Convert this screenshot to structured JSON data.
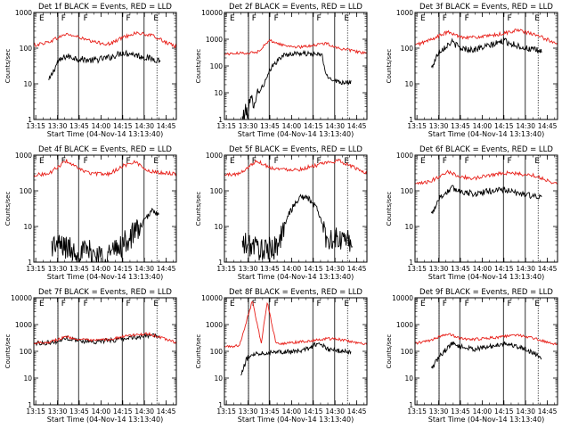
{
  "figure": {
    "time_ticks": [
      "13:15",
      "13:30",
      "13:45",
      "14:00",
      "14:15",
      "14:30",
      "14:45"
    ],
    "y_ticks_1e3": [
      "1",
      "10",
      "100",
      "1000"
    ],
    "y_ticks_1e4": [
      "1",
      "10",
      "100",
      "1000",
      "10000"
    ],
    "ylabel": "Counts/sec",
    "xlabel": "Start Time (04-Nov-14 13:13:40)",
    "markers": [
      "E",
      "F",
      "F",
      "F",
      "E"
    ],
    "colors": {
      "events": "#000000",
      "lld": "#e8201a",
      "axes": "#000000"
    }
  },
  "chart_data": [
    {
      "type": "line",
      "title": "Det 1f BLACK = Events, RED = LLD",
      "xlabel": "Start Time (04-Nov-14 13:13:40)",
      "ylabel": "Counts/sec",
      "x_range": [
        "13:13:40",
        "14:52:00"
      ],
      "y_scale": "log",
      "ylim": [
        1,
        1000
      ],
      "series": [
        {
          "name": "Events",
          "color": "black",
          "start": "13:24",
          "end": "14:41",
          "points": [
            [
              13.4,
              12
            ],
            [
              13.5,
              40
            ],
            [
              13.6,
              60
            ],
            [
              13.75,
              50
            ],
            [
              13.9,
              45
            ],
            [
              14.1,
              55
            ],
            [
              14.25,
              75
            ],
            [
              14.35,
              70
            ],
            [
              14.5,
              55
            ],
            [
              14.69,
              45
            ]
          ]
        },
        {
          "name": "LLD",
          "color": "red",
          "start": "13:13:40",
          "end": "14:52",
          "points": [
            [
              13.23,
              120
            ],
            [
              13.4,
              150
            ],
            [
              13.6,
              250
            ],
            [
              13.75,
              200
            ],
            [
              13.9,
              150
            ],
            [
              14.1,
              130
            ],
            [
              14.25,
              200
            ],
            [
              14.4,
              270
            ],
            [
              14.6,
              220
            ],
            [
              14.85,
              110
            ]
          ]
        }
      ]
    },
    {
      "type": "line",
      "title": "Det 2f BLACK = Events, RED = LLD",
      "xlabel": "Start Time (04-Nov-14 13:13:40)",
      "ylabel": "Counts/sec",
      "x_range": [
        "13:13:40",
        "14:52:00"
      ],
      "y_scale": "log",
      "ylim": [
        1,
        10000
      ],
      "series": [
        {
          "name": "Events",
          "color": "black",
          "start": "13:26",
          "end": "14:41",
          "points": [
            [
              13.43,
              1
            ],
            [
              13.55,
              5
            ],
            [
              13.68,
              20
            ],
            [
              13.78,
              100
            ],
            [
              13.9,
              250
            ],
            [
              14.05,
              300
            ],
            [
              14.2,
              280
            ],
            [
              14.35,
              260
            ],
            [
              14.4,
              40
            ],
            [
              14.55,
              25
            ],
            [
              14.68,
              25
            ]
          ]
        },
        {
          "name": "LLD",
          "color": "red",
          "start": "13:13:40",
          "end": "14:52",
          "points": [
            [
              13.23,
              280
            ],
            [
              13.4,
              300
            ],
            [
              13.6,
              320
            ],
            [
              13.75,
              900
            ],
            [
              13.9,
              600
            ],
            [
              14.1,
              500
            ],
            [
              14.25,
              600
            ],
            [
              14.4,
              700
            ],
            [
              14.55,
              450
            ],
            [
              14.85,
              300
            ]
          ]
        }
      ]
    },
    {
      "type": "line",
      "title": "Det 3f BLACK = Events, RED = LLD",
      "xlabel": "Start Time (04-Nov-14 13:13:40)",
      "ylabel": "Counts/sec",
      "x_range": [
        "13:13:40",
        "14:52:00"
      ],
      "y_scale": "log",
      "ylim": [
        1,
        1000
      ],
      "series": [
        {
          "name": "Events",
          "color": "black",
          "start": "13:25",
          "end": "14:41",
          "points": [
            [
              13.41,
              25
            ],
            [
              13.5,
              80
            ],
            [
              13.65,
              150
            ],
            [
              13.75,
              100
            ],
            [
              13.9,
              90
            ],
            [
              14.1,
              120
            ],
            [
              14.25,
              160
            ],
            [
              14.35,
              130
            ],
            [
              14.5,
              100
            ],
            [
              14.69,
              80
            ]
          ]
        },
        {
          "name": "LLD",
          "color": "red",
          "start": "13:13:40",
          "end": "14:52",
          "points": [
            [
              13.23,
              120
            ],
            [
              13.4,
              170
            ],
            [
              13.6,
              280
            ],
            [
              13.75,
              210
            ],
            [
              13.9,
              200
            ],
            [
              14.1,
              220
            ],
            [
              14.25,
              260
            ],
            [
              14.4,
              320
            ],
            [
              14.6,
              240
            ],
            [
              14.85,
              140
            ]
          ]
        }
      ]
    },
    {
      "type": "line",
      "title": "Det 4f BLACK = Events, RED = LLD",
      "xlabel": "Start Time (04-Nov-14 13:13:40)",
      "ylabel": "Counts/sec",
      "x_range": [
        "13:13:40",
        "14:52:00"
      ],
      "y_scale": "log",
      "ylim": [
        1,
        1000
      ],
      "series": [
        {
          "name": "Events",
          "color": "black",
          "start": "13:26",
          "end": "14:40",
          "points": [
            [
              13.43,
              3
            ],
            [
              13.55,
              3
            ],
            [
              13.7,
              2
            ],
            [
              13.85,
              2
            ],
            [
              14.0,
              1.5
            ],
            [
              14.15,
              2
            ],
            [
              14.3,
              4
            ],
            [
              14.45,
              10
            ],
            [
              14.6,
              30
            ],
            [
              14.67,
              20
            ]
          ]
        },
        {
          "name": "LLD",
          "color": "red",
          "start": "13:13:40",
          "end": "14:52",
          "points": [
            [
              13.23,
              280
            ],
            [
              13.4,
              300
            ],
            [
              13.6,
              700
            ],
            [
              13.75,
              400
            ],
            [
              13.9,
              300
            ],
            [
              14.1,
              300
            ],
            [
              14.25,
              500
            ],
            [
              14.4,
              650
            ],
            [
              14.55,
              350
            ],
            [
              14.85,
              300
            ]
          ]
        }
      ]
    },
    {
      "type": "line",
      "title": "Det 5f BLACK = Events, RED = LLD",
      "xlabel": "Start Time (04-Nov-14 13:13:40)",
      "ylabel": "Counts/sec",
      "x_range": [
        "13:13:40",
        "14:52:00"
      ],
      "y_scale": "log",
      "ylim": [
        1,
        1000
      ],
      "series": [
        {
          "name": "Events",
          "color": "black",
          "start": "13:26",
          "end": "14:42",
          "points": [
            [
              13.43,
              3
            ],
            [
              13.55,
              3
            ],
            [
              13.7,
              2
            ],
            [
              13.85,
              3
            ],
            [
              13.95,
              20
            ],
            [
              14.1,
              70
            ],
            [
              14.2,
              60
            ],
            [
              14.3,
              30
            ],
            [
              14.4,
              5
            ],
            [
              14.55,
              4
            ],
            [
              14.7,
              4
            ]
          ]
        },
        {
          "name": "LLD",
          "color": "red",
          "start": "13:13:40",
          "end": "14:52",
          "points": [
            [
              13.23,
              280
            ],
            [
              13.4,
              300
            ],
            [
              13.6,
              700
            ],
            [
              13.75,
              450
            ],
            [
              13.9,
              400
            ],
            [
              14.1,
              400
            ],
            [
              14.25,
              500
            ],
            [
              14.4,
              600
            ],
            [
              14.55,
              700
            ],
            [
              14.85,
              320
            ]
          ]
        }
      ]
    },
    {
      "type": "line",
      "title": "Det 6f BLACK = Events, RED = LLD",
      "xlabel": "Start Time (04-Nov-14 13:13:40)",
      "ylabel": "Counts/sec",
      "x_range": [
        "13:13:40",
        "14:52:00"
      ],
      "y_scale": "log",
      "ylim": [
        1,
        1000
      ],
      "series": [
        {
          "name": "Events",
          "color": "black",
          "start": "13:25",
          "end": "14:41",
          "points": [
            [
              13.41,
              20
            ],
            [
              13.5,
              60
            ],
            [
              13.65,
              120
            ],
            [
              13.75,
              100
            ],
            [
              13.9,
              80
            ],
            [
              14.1,
              100
            ],
            [
              14.25,
              110
            ],
            [
              14.35,
              90
            ],
            [
              14.5,
              80
            ],
            [
              14.69,
              60
            ]
          ]
        },
        {
          "name": "LLD",
          "color": "red",
          "start": "13:13:40",
          "end": "14:52",
          "points": [
            [
              13.23,
              150
            ],
            [
              13.4,
              180
            ],
            [
              13.6,
              350
            ],
            [
              13.75,
              250
            ],
            [
              13.9,
              220
            ],
            [
              14.1,
              280
            ],
            [
              14.25,
              320
            ],
            [
              14.4,
              300
            ],
            [
              14.6,
              270
            ],
            [
              14.85,
              160
            ]
          ]
        }
      ]
    },
    {
      "type": "line",
      "title": "Det 7f BLACK = Events, RED = LLD",
      "xlabel": "Start Time (04-Nov-14 13:13:40)",
      "ylabel": "Counts/sec",
      "x_range": [
        "13:13:40",
        "14:52:00"
      ],
      "y_scale": "log",
      "ylim": [
        1,
        10000
      ],
      "series": [
        {
          "name": "Events",
          "color": "black",
          "start": "13:15",
          "end": "14:40",
          "points": [
            [
              13.25,
              200
            ],
            [
              13.35,
              210
            ],
            [
              13.5,
              230
            ],
            [
              13.6,
              320
            ],
            [
              13.75,
              250
            ],
            [
              13.9,
              230
            ],
            [
              14.1,
              250
            ],
            [
              14.25,
              300
            ],
            [
              14.4,
              340
            ],
            [
              14.55,
              400
            ],
            [
              14.66,
              350
            ]
          ]
        },
        {
          "name": "LLD",
          "color": "red",
          "start": "13:13:40",
          "end": "14:52",
          "points": [
            [
              13.23,
              210
            ],
            [
              13.4,
              220
            ],
            [
              13.6,
              350
            ],
            [
              13.75,
              280
            ],
            [
              13.9,
              250
            ],
            [
              14.1,
              280
            ],
            [
              14.25,
              350
            ],
            [
              14.4,
              420
            ],
            [
              14.55,
              450
            ],
            [
              14.85,
              220
            ]
          ]
        }
      ]
    },
    {
      "type": "line",
      "title": "Det 8f BLACK = Events, RED = LLD",
      "xlabel": "Start Time (04-Nov-14 13:13:40)",
      "ylabel": "Counts/sec",
      "x_range": [
        "13:13:40",
        "14:52:00"
      ],
      "y_scale": "log",
      "ylim": [
        1,
        10000
      ],
      "series": [
        {
          "name": "Events",
          "color": "black",
          "start": "13:25",
          "end": "14:41",
          "points": [
            [
              13.41,
              10
            ],
            [
              13.48,
              50
            ],
            [
              13.55,
              80
            ],
            [
              13.7,
              90
            ],
            [
              13.85,
              100
            ],
            [
              14.0,
              95
            ],
            [
              14.15,
              110
            ],
            [
              14.3,
              200
            ],
            [
              14.45,
              110
            ],
            [
              14.6,
              100
            ],
            [
              14.68,
              90
            ]
          ]
        },
        {
          "name": "LLD",
          "color": "red",
          "start": "13:13:40",
          "end": "14:52",
          "points": [
            [
              13.23,
              150
            ],
            [
              13.4,
              160
            ],
            [
              13.55,
              8000
            ],
            [
              13.65,
              200
            ],
            [
              13.72,
              7000
            ],
            [
              13.82,
              200
            ],
            [
              13.95,
              200
            ],
            [
              14.1,
              230
            ],
            [
              14.25,
              250
            ],
            [
              14.4,
              300
            ],
            [
              14.55,
              280
            ],
            [
              14.85,
              180
            ]
          ]
        }
      ]
    },
    {
      "type": "line",
      "title": "Det 9f BLACK = Events, RED = LLD",
      "xlabel": "Start Time (04-Nov-14 13:13:40)",
      "ylabel": "Counts/sec",
      "x_range": [
        "13:13:40",
        "14:52:00"
      ],
      "y_scale": "log",
      "ylim": [
        1,
        10000
      ],
      "series": [
        {
          "name": "Events",
          "color": "black",
          "start": "13:25",
          "end": "14:41",
          "points": [
            [
              13.41,
              20
            ],
            [
              13.5,
              60
            ],
            [
              13.65,
              200
            ],
            [
              13.75,
              150
            ],
            [
              13.9,
              120
            ],
            [
              14.1,
              150
            ],
            [
              14.25,
              200
            ],
            [
              14.35,
              170
            ],
            [
              14.5,
              120
            ],
            [
              14.69,
              60
            ]
          ]
        },
        {
          "name": "LLD",
          "color": "red",
          "start": "13:13:40",
          "end": "14:52",
          "points": [
            [
              13.23,
              200
            ],
            [
              13.4,
              250
            ],
            [
              13.6,
              450
            ],
            [
              13.75,
              300
            ],
            [
              13.9,
              280
            ],
            [
              14.1,
              320
            ],
            [
              14.25,
              350
            ],
            [
              14.4,
              420
            ],
            [
              14.6,
              300
            ],
            [
              14.85,
              180
            ]
          ]
        }
      ]
    }
  ]
}
